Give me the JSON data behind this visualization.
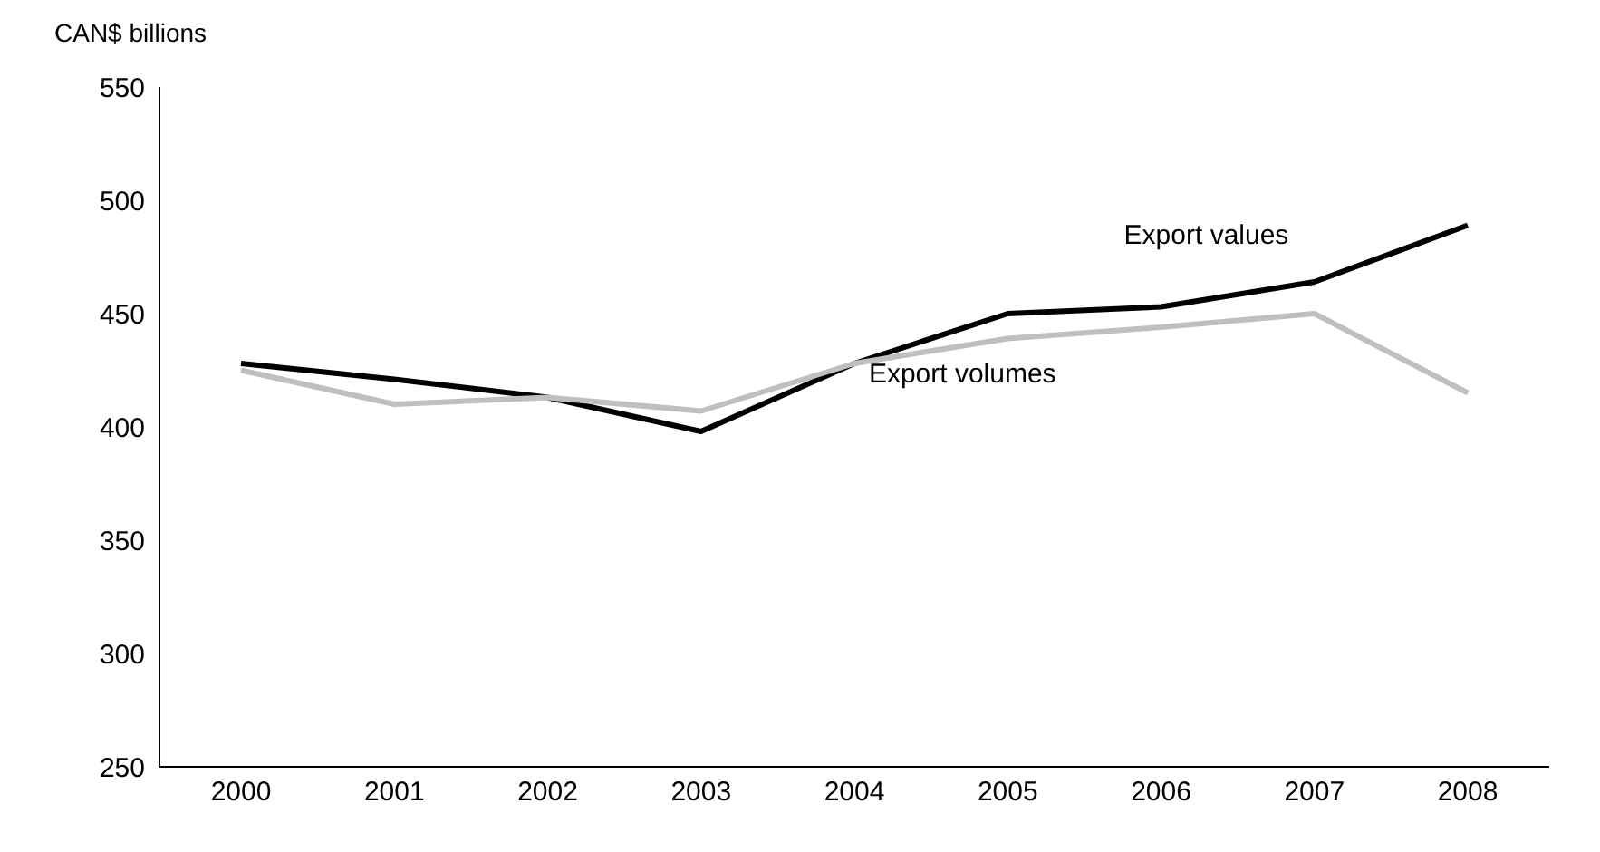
{
  "chart_data": {
    "type": "line",
    "ylabel": "CAN$ billions",
    "categories": [
      "2000",
      "2001",
      "2002",
      "2003",
      "2004",
      "2005",
      "2006",
      "2007",
      "2008"
    ],
    "series": [
      {
        "name": "Export values",
        "color": "#000000",
        "values": [
          428,
          421,
          413,
          398,
          428,
          450,
          453,
          464,
          489
        ]
      },
      {
        "name": "Export volumes",
        "color": "#bfbfbf",
        "values": [
          425,
          410,
          413,
          407,
          428,
          439,
          444,
          450,
          415
        ]
      }
    ],
    "ylim": [
      250,
      550
    ],
    "yticks": [
      250,
      300,
      350,
      400,
      450,
      500,
      550
    ],
    "grid": false,
    "legend": false,
    "marker": "none",
    "line_style": "solid"
  }
}
